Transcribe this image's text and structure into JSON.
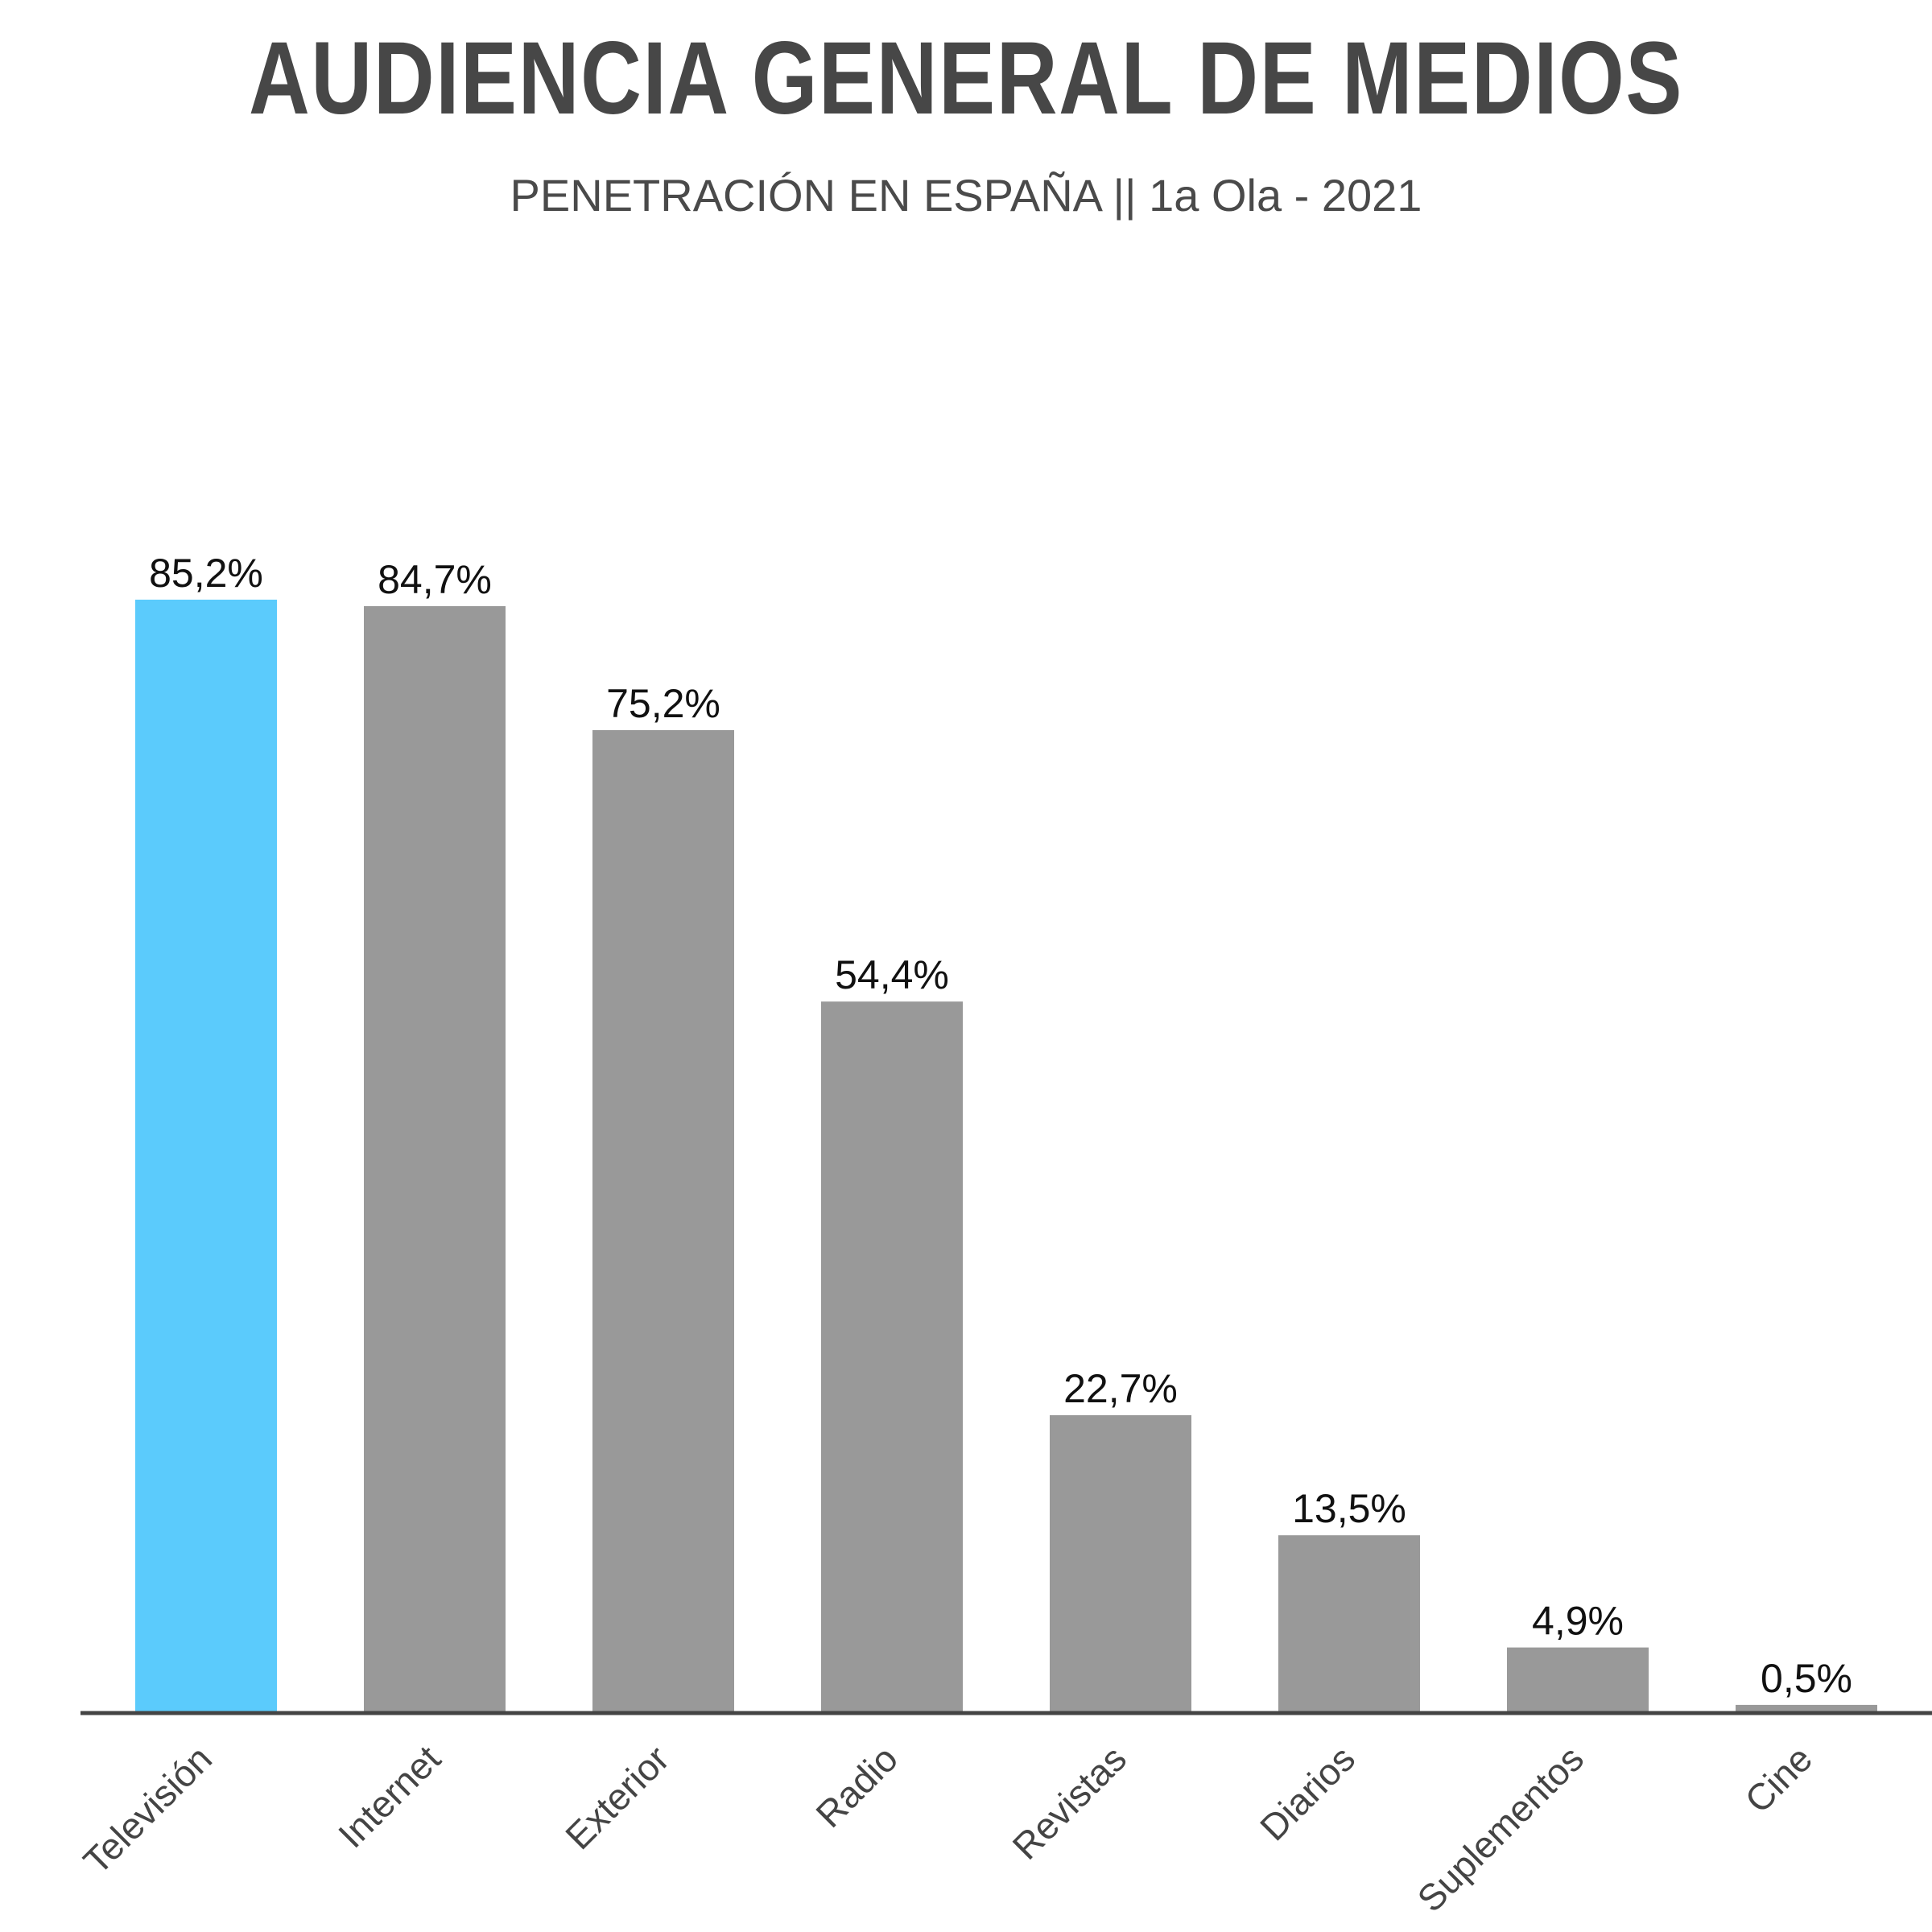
{
  "title": "AUDIENCIA GENERAL DE MEDIOS",
  "subtitle": "PENETRACIÓN EN ESPAÑA || 1a Ola - 2021",
  "chart_data": {
    "type": "bar",
    "categories": [
      "Televisión",
      "Internet",
      "Exterior",
      "Radio",
      "Revistas",
      "Diarios",
      "Suplementos",
      "Cine"
    ],
    "values": [
      85.2,
      84.7,
      75.2,
      54.4,
      22.7,
      13.5,
      4.9,
      0.5
    ],
    "data_labels": [
      "85,2%",
      "84,7%",
      "75,2%",
      "54,4%",
      "22,7%",
      "13,5%",
      "4,9%",
      "0,5%"
    ],
    "highlight_index": 0,
    "colors": {
      "highlight": "#5bcbfc",
      "default": "#999999",
      "axis": "#444444",
      "title": "#474747"
    },
    "ylim": [
      0,
      100
    ],
    "grid": false,
    "legend": "none"
  }
}
